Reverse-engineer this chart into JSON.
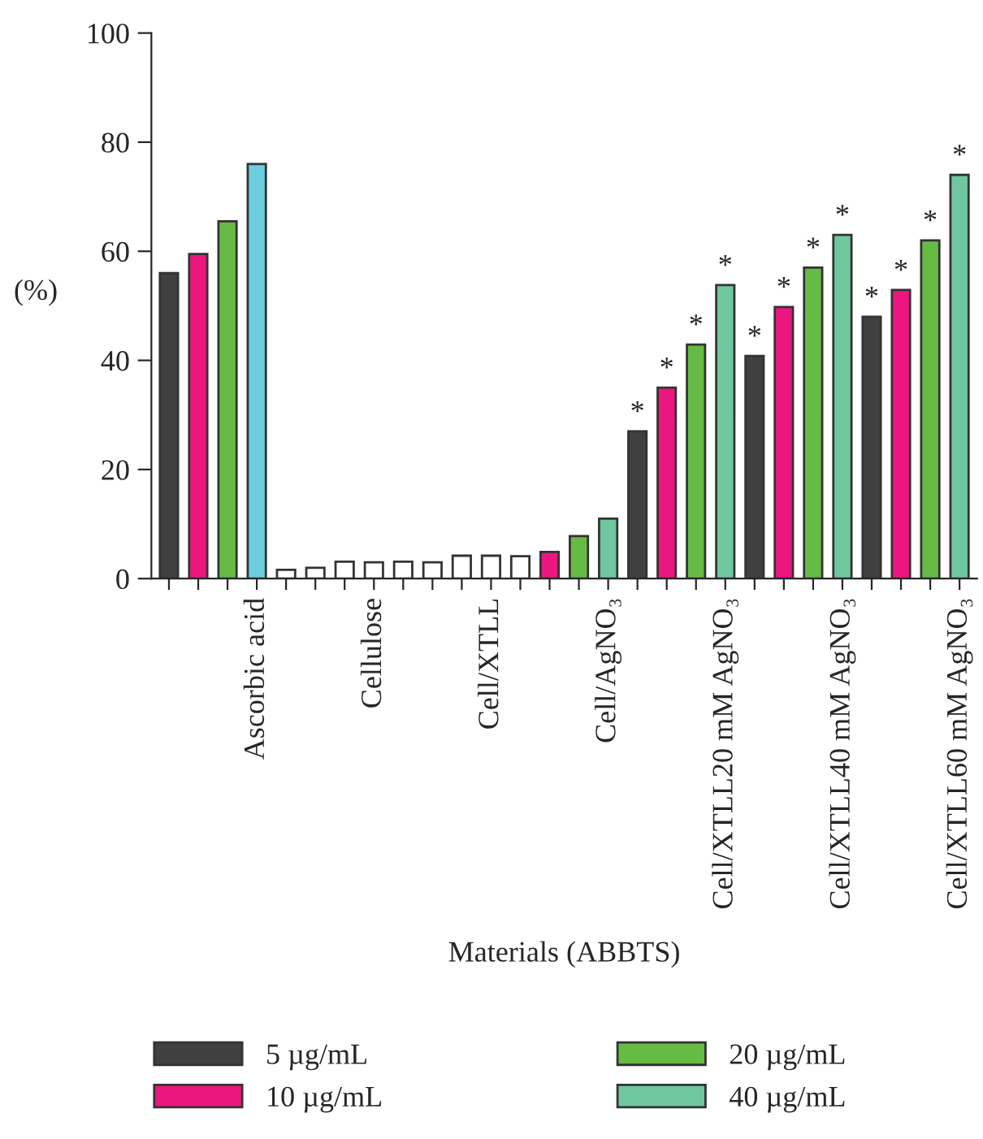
{
  "chart_data": {
    "type": "bar",
    "xlabel": "Materials (ABBTS)",
    "ylabel": "(%)",
    "categories": [
      null,
      null,
      null,
      "Ascorbic acid",
      null,
      null,
      null,
      "Cellulose",
      null,
      null,
      null,
      "Cell/XTLL",
      null,
      null,
      null,
      "Cell/AgNO₃",
      null,
      null,
      null,
      "Cell/XTLL20 mM AgNO₃",
      null,
      null,
      null,
      "Cell/XTLL40 mM AgNO₃",
      null,
      null,
      null,
      "Cell/XTLL60 mM AgNO₃"
    ],
    "series": [
      {
        "name": "5 µg/mL",
        "color": "#404040",
        "colors": [
          "#404040",
          null,
          null,
          null,
          "#ffffff",
          null,
          null,
          null,
          "#ffffff",
          null,
          null,
          null,
          "#ffffff",
          null,
          null,
          null,
          "#404040",
          null,
          null,
          null,
          "#404040",
          null,
          null,
          null,
          "#404040",
          null,
          null,
          null
        ],
        "values": [
          56,
          null,
          null,
          null,
          1.6,
          null,
          null,
          null,
          3.1,
          null,
          null,
          null,
          4.1,
          null,
          null,
          null,
          27,
          null,
          null,
          null,
          40.8,
          null,
          null,
          null,
          48,
          null,
          null,
          null
        ],
        "value_labels": [
          null,
          null,
          null,
          null,
          null,
          null,
          null,
          null,
          null,
          null,
          null,
          null,
          null,
          null,
          null,
          null,
          "*",
          null,
          null,
          null,
          "*",
          null,
          null,
          null,
          "*",
          null,
          null,
          null
        ]
      },
      {
        "name": "10 µg/mL",
        "color": "#ec1680",
        "colors": [
          null,
          "#ec1680",
          null,
          null,
          null,
          "#ffffff",
          null,
          null,
          null,
          "#ffffff",
          null,
          null,
          null,
          "#ec1680",
          null,
          null,
          null,
          "#ec1680",
          null,
          null,
          null,
          "#ec1680",
          null,
          null,
          null,
          "#ec1680",
          null,
          null
        ],
        "values": [
          null,
          59.5,
          null,
          null,
          null,
          2.0,
          null,
          null,
          null,
          3.0,
          null,
          null,
          null,
          4.9,
          null,
          null,
          null,
          35,
          null,
          null,
          null,
          49.8,
          null,
          null,
          null,
          52.9,
          null,
          null
        ],
        "value_labels": [
          null,
          null,
          null,
          null,
          null,
          null,
          null,
          null,
          null,
          null,
          null,
          null,
          null,
          null,
          null,
          null,
          null,
          "*",
          null,
          null,
          null,
          "*",
          null,
          null,
          null,
          "*",
          null,
          null
        ]
      },
      {
        "name": "20 µg/mL",
        "color": "#66bb44",
        "colors": [
          null,
          null,
          "#66bb44",
          null,
          null,
          null,
          "#ffffff",
          null,
          null,
          null,
          "#ffffff",
          null,
          null,
          null,
          "#66bb44",
          null,
          null,
          null,
          "#66bb44",
          null,
          null,
          null,
          "#66bb44",
          null,
          null,
          null,
          "#66bb44",
          null
        ],
        "values": [
          null,
          null,
          65.5,
          null,
          null,
          null,
          3.1,
          null,
          null,
          null,
          4.2,
          null,
          null,
          null,
          7.8,
          null,
          null,
          null,
          42.9,
          null,
          null,
          null,
          57,
          null,
          null,
          null,
          62,
          null
        ],
        "value_labels": [
          null,
          null,
          null,
          null,
          null,
          null,
          null,
          null,
          null,
          null,
          null,
          null,
          null,
          null,
          null,
          null,
          null,
          null,
          "*",
          null,
          null,
          null,
          "*",
          null,
          null,
          null,
          "*",
          null
        ]
      },
      {
        "name": "40 µg/mL",
        "color": "#6fc7a0",
        "colors": [
          null,
          null,
          null,
          "#6ccfe0",
          null,
          null,
          null,
          "#ffffff",
          null,
          null,
          null,
          "#ffffff",
          null,
          null,
          null,
          "#6fc7a0",
          null,
          null,
          null,
          "#6fc7a0",
          null,
          null,
          null,
          "#6fc7a0",
          null,
          null,
          null,
          "#6fc7a0"
        ],
        "values": [
          null,
          null,
          null,
          76,
          null,
          null,
          null,
          3.0,
          null,
          null,
          null,
          4.2,
          null,
          null,
          null,
          11,
          null,
          null,
          null,
          53.8,
          null,
          null,
          null,
          63,
          null,
          null,
          null,
          74
        ],
        "value_labels": [
          null,
          null,
          null,
          null,
          null,
          null,
          null,
          null,
          null,
          null,
          null,
          null,
          null,
          null,
          null,
          null,
          null,
          null,
          null,
          "*",
          null,
          null,
          null,
          "*",
          null,
          null,
          null,
          "*"
        ]
      }
    ],
    "ylim": [
      0,
      100
    ],
    "yticks": [
      0,
      20,
      40,
      60,
      80,
      100
    ],
    "grid": false,
    "legend": "bottom"
  }
}
